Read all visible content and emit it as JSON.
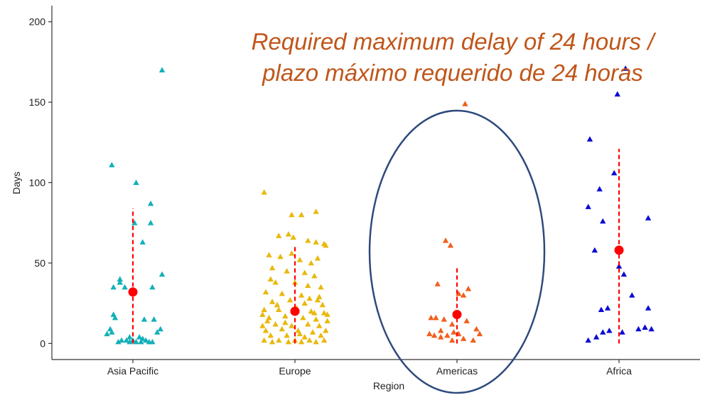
{
  "chart_data": {
    "type": "scatter",
    "title": "",
    "xlabel": "Region",
    "ylabel": "Days",
    "ylim": [
      -10,
      210
    ],
    "yticks": [
      0,
      50,
      100,
      150,
      200
    ],
    "grid": false,
    "legend": "none",
    "categories": [
      "Asia Pacific",
      "Europe",
      "Americas",
      "Africa"
    ],
    "annotation": {
      "lines": [
        "Required maximum delay of 24 hours /",
        "plazo máximo requerido de 24 horas"
      ],
      "color": "#c0561a"
    },
    "highlight": {
      "shape": "ellipse",
      "category": "Americas",
      "color": "#2e4a7d"
    },
    "summary_color": "#ff0000",
    "series": [
      {
        "category": "Asia Pacific",
        "color": "#12b0b9",
        "mean": 32,
        "range": [
          0,
          84
        ],
        "points": [
          [
            0.18,
            170
          ],
          [
            -0.13,
            111
          ],
          [
            0.02,
            100
          ],
          [
            0.11,
            87
          ],
          [
            0.01,
            75
          ],
          [
            0.11,
            75
          ],
          [
            0.06,
            63
          ],
          [
            0.18,
            43
          ],
          [
            -0.08,
            40
          ],
          [
            -0.08,
            38
          ],
          [
            -0.12,
            35
          ],
          [
            -0.05,
            35
          ],
          [
            0.12,
            35
          ],
          [
            -0.12,
            18
          ],
          [
            -0.11,
            16
          ],
          [
            0.07,
            15
          ],
          [
            0.13,
            15
          ],
          [
            -0.16,
            6
          ],
          [
            -0.14,
            9
          ],
          [
            -0.13,
            7
          ],
          [
            0.17,
            9
          ],
          [
            0.15,
            7
          ],
          [
            -0.02,
            4
          ],
          [
            0.04,
            4
          ],
          [
            -0.07,
            2
          ],
          [
            -0.04,
            2
          ],
          [
            -0.02,
            1
          ],
          [
            0.0,
            2
          ],
          [
            0.02,
            1
          ],
          [
            0.05,
            1
          ],
          [
            0.08,
            2
          ],
          [
            0.1,
            1
          ],
          [
            0.12,
            1
          ],
          [
            -0.09,
            1
          ],
          [
            0.06,
            3
          ]
        ]
      },
      {
        "category": "Europe",
        "color": "#e8b90e",
        "mean": 20,
        "range": [
          0,
          61
        ],
        "points": [
          [
            -0.19,
            94
          ],
          [
            0.13,
            82
          ],
          [
            -0.02,
            80
          ],
          [
            0.04,
            80
          ],
          [
            -0.04,
            68
          ],
          [
            -0.1,
            67
          ],
          [
            -0.01,
            66
          ],
          [
            0.08,
            64
          ],
          [
            0.13,
            63
          ],
          [
            0.18,
            62
          ],
          [
            0.19,
            61
          ],
          [
            -0.16,
            55
          ],
          [
            -0.09,
            54
          ],
          [
            -0.02,
            56
          ],
          [
            0.03,
            52
          ],
          [
            0.1,
            50
          ],
          [
            0.14,
            53
          ],
          [
            -0.14,
            47
          ],
          [
            -0.05,
            45
          ],
          [
            0.06,
            44
          ],
          [
            0.12,
            42
          ],
          [
            -0.12,
            38
          ],
          [
            0.0,
            38
          ],
          [
            0.08,
            36
          ],
          [
            -0.18,
            32
          ],
          [
            -0.08,
            31
          ],
          [
            0.04,
            30
          ],
          [
            0.15,
            29
          ],
          [
            -0.14,
            26
          ],
          [
            -0.03,
            27
          ],
          [
            0.06,
            25
          ],
          [
            0.17,
            24
          ],
          [
            -0.19,
            21
          ],
          [
            -0.1,
            21
          ],
          [
            0.01,
            22
          ],
          [
            0.1,
            20
          ],
          [
            0.18,
            19
          ],
          [
            -0.16,
            16
          ],
          [
            -0.06,
            17
          ],
          [
            0.05,
            16
          ],
          [
            0.13,
            15
          ],
          [
            0.2,
            14
          ],
          [
            -0.2,
            11
          ],
          [
            -0.12,
            12
          ],
          [
            -0.02,
            11
          ],
          [
            0.08,
            12
          ],
          [
            0.15,
            11
          ],
          [
            -0.18,
            8
          ],
          [
            -0.08,
            9
          ],
          [
            0.02,
            8
          ],
          [
            0.11,
            7
          ],
          [
            0.19,
            8
          ],
          [
            -0.15,
            5
          ],
          [
            -0.05,
            5
          ],
          [
            0.06,
            4
          ],
          [
            0.16,
            5
          ],
          [
            -0.19,
            2
          ],
          [
            -0.1,
            2
          ],
          [
            0.0,
            2
          ],
          [
            0.09,
            2
          ],
          [
            0.18,
            2
          ],
          [
            -0.14,
            1
          ],
          [
            -0.04,
            1
          ],
          [
            0.04,
            1
          ],
          [
            0.13,
            1
          ],
          [
            -0.17,
            14
          ],
          [
            0.12,
            19
          ],
          [
            -0.11,
            24
          ],
          [
            0.14,
            27
          ],
          [
            -0.06,
            13
          ],
          [
            0.03,
            6
          ],
          [
            0.2,
            18
          ],
          [
            -0.2,
            18
          ],
          [
            0.09,
            28
          ],
          [
            -0.15,
            40
          ],
          [
            0.16,
            35
          ]
        ]
      },
      {
        "category": "Americas",
        "color": "#f05f1c",
        "mean": 18,
        "range": [
          0,
          47
        ],
        "points": [
          [
            0.05,
            149
          ],
          [
            -0.07,
            64
          ],
          [
            -0.04,
            61
          ],
          [
            -0.12,
            37
          ],
          [
            0.07,
            34
          ],
          [
            0.01,
            31
          ],
          [
            0.04,
            30
          ],
          [
            -0.16,
            16
          ],
          [
            -0.13,
            16
          ],
          [
            -0.08,
            15
          ],
          [
            -0.03,
            12
          ],
          [
            0.06,
            14
          ],
          [
            -0.17,
            6
          ],
          [
            -0.14,
            5
          ],
          [
            -0.1,
            4
          ],
          [
            -0.06,
            5
          ],
          [
            -0.02,
            7
          ],
          [
            0.01,
            6
          ],
          [
            0.04,
            3
          ],
          [
            0.12,
            9
          ],
          [
            0.14,
            6
          ],
          [
            0.1,
            2
          ],
          [
            -0.03,
            2
          ],
          [
            -0.1,
            8
          ]
        ]
      },
      {
        "category": "Africa",
        "color": "#0b0bd4",
        "mean": 58,
        "range": [
          0,
          121
        ],
        "points": [
          [
            -0.01,
            155
          ],
          [
            0.04,
            171
          ],
          [
            -0.18,
            127
          ],
          [
            -0.03,
            106
          ],
          [
            -0.12,
            96
          ],
          [
            -0.19,
            85
          ],
          [
            -0.1,
            76
          ],
          [
            0.18,
            78
          ],
          [
            -0.15,
            58
          ],
          [
            0.0,
            48
          ],
          [
            0.03,
            43
          ],
          [
            0.08,
            30
          ],
          [
            -0.11,
            21
          ],
          [
            -0.07,
            22
          ],
          [
            0.18,
            22
          ],
          [
            -0.06,
            8
          ],
          [
            -0.1,
            7
          ],
          [
            -0.14,
            4
          ],
          [
            0.02,
            7
          ],
          [
            0.12,
            9
          ],
          [
            0.16,
            10
          ],
          [
            0.2,
            9
          ],
          [
            -0.19,
            2
          ]
        ]
      }
    ]
  }
}
